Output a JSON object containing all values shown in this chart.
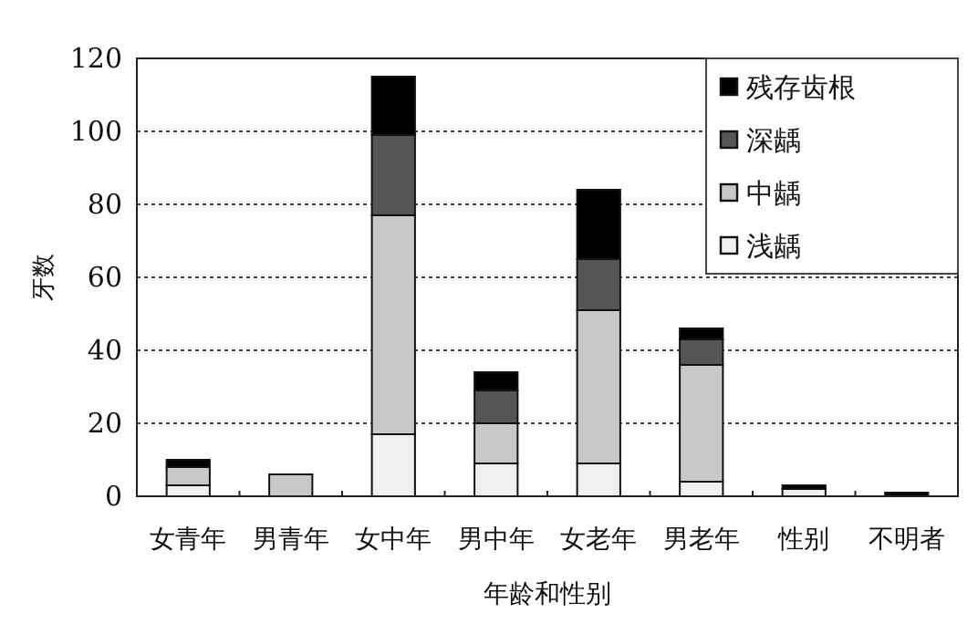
{
  "chart_data": {
    "type": "bar",
    "stacked": true,
    "ylabel": "牙数",
    "xlabel": "年龄和性别",
    "categories": [
      "女青年",
      "男青年",
      "女中年",
      "男中年",
      "女老年",
      "男老年",
      "性别",
      "不明者"
    ],
    "series": [
      {
        "name": "浅龋",
        "color": "#f0f0f0",
        "values": [
          3,
          0,
          17,
          9,
          9,
          4,
          2,
          0
        ]
      },
      {
        "name": "中龋",
        "color": "#c8c8c8",
        "values": [
          5,
          6,
          60,
          11,
          42,
          32,
          0,
          0
        ]
      },
      {
        "name": "深龋",
        "color": "#555555",
        "values": [
          0,
          0,
          22,
          9,
          14,
          7,
          0,
          0
        ]
      },
      {
        "name": "残存齿根",
        "color": "#000000",
        "values": [
          2,
          0,
          16,
          5,
          19,
          3,
          1,
          1
        ]
      }
    ],
    "ylim": [
      0,
      120
    ],
    "yticks": [
      0,
      20,
      40,
      60,
      80,
      100,
      120
    ],
    "grid": "y",
    "legend": "top right"
  }
}
